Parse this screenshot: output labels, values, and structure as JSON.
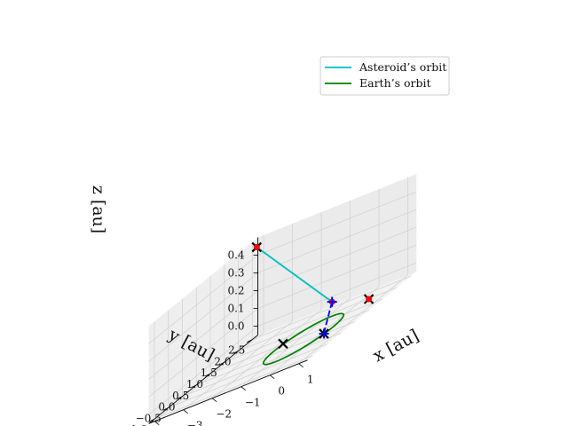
{
  "chart_data": {
    "type": "line",
    "projection": "3d",
    "xlabel": "$x$ [au]",
    "ylabel": "$y$ [au]",
    "zlabel": "$z$ [au]",
    "xlabel_display": "x [au]",
    "ylabel_display": "y [au]",
    "zlabel_display": "z [au]",
    "xlim": [
      -4.2,
      1.3
    ],
    "ylim": [
      -1.2,
      2.7
    ],
    "zlim": [
      -0.05,
      0.5
    ],
    "x_ticks": [
      -4,
      -3,
      -2,
      -1,
      0,
      1
    ],
    "x_tick_labels": [
      "−4",
      "−3",
      "−2",
      "−1",
      "0",
      "1"
    ],
    "y_ticks": [
      -1.0,
      -0.5,
      0.0,
      0.5,
      1.0,
      1.5,
      2.0,
      2.5
    ],
    "y_tick_labels": [
      "−1.0",
      "−0.5",
      "0.0",
      "0.5",
      "1.0",
      "1.5",
      "2.0",
      "2.5"
    ],
    "z_ticks": [
      0.0,
      0.1,
      0.2,
      0.3,
      0.4
    ],
    "z_tick_labels": [
      "0.0",
      "0.1",
      "0.2",
      "0.3",
      "0.4"
    ],
    "grid": true,
    "legend_position": "top-right",
    "series": [
      {
        "name": "Asteroid's orbit",
        "legend_label": "Asteroid’s orbit",
        "color": "#00bfbf",
        "points": [
          [
            -3.9,
            2.35,
            0.47
          ],
          [
            0.02,
            1.0,
            0.08
          ]
        ]
      },
      {
        "name": "Earth's orbit",
        "legend_label": "Earth’s orbit",
        "color": "#008000",
        "ellipse": {
          "center": [
            0,
            0,
            0
          ],
          "radius": 1.0
        }
      },
      {
        "name": "transfer",
        "color": "#0000ff",
        "style": "dashed",
        "points": [
          [
            0.02,
            1.0,
            0.08
          ],
          [
            0.9,
            -0.2,
            0.0
          ]
        ]
      }
    ],
    "markers": [
      {
        "kind": "x",
        "color": "#000000",
        "point": [
          -3.9,
          2.35,
          0.47
        ]
      },
      {
        "kind": "x",
        "color": "#000000",
        "point": [
          -1.0,
          0.3,
          0.0
        ]
      },
      {
        "kind": "x",
        "color": "#000000",
        "point": [
          0.95,
          -0.25,
          0.0
        ]
      },
      {
        "kind": "x",
        "color": "#000000",
        "point": [
          1.1,
          1.2,
          0.0
        ]
      },
      {
        "kind": "dot",
        "color": "#ff0000",
        "point": [
          -3.9,
          2.35,
          0.47
        ]
      },
      {
        "kind": "dot",
        "color": "#ff0000",
        "point": [
          0.02,
          1.0,
          0.08
        ]
      },
      {
        "kind": "dot",
        "color": "#ff0000",
        "point": [
          1.1,
          1.2,
          0.0
        ]
      },
      {
        "kind": "plus",
        "color": "#0000ff",
        "point": [
          0.02,
          1.0,
          0.08
        ]
      },
      {
        "kind": "plus",
        "color": "#0000ff",
        "point": [
          0.95,
          -0.25,
          0.0
        ]
      }
    ]
  }
}
